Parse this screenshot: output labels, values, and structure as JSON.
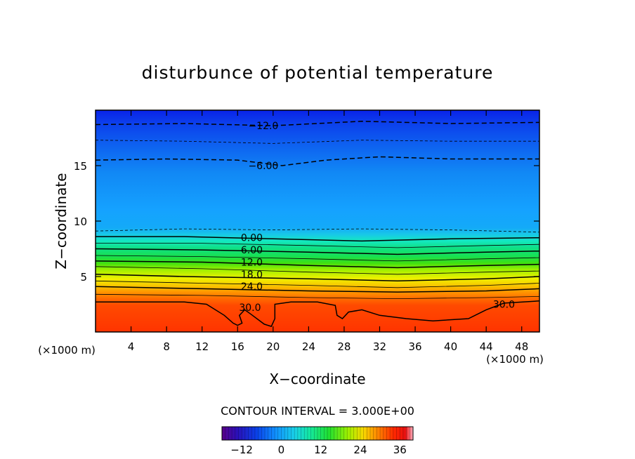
{
  "chart_data": {
    "type": "contour",
    "title": "disturbunce of potential temperature",
    "xlabel": "X−coordinate",
    "ylabel": "Z−coordinate",
    "x_unit_left": "(×1000 m)",
    "x_unit_right": "(×1000 m)",
    "xlim": [
      0,
      50
    ],
    "ylim": [
      0,
      20
    ],
    "x_ticks": [
      4,
      8,
      12,
      16,
      20,
      24,
      28,
      32,
      36,
      40,
      44,
      48
    ],
    "y_ticks": [
      5,
      10,
      15
    ],
    "contour_interval_text": "CONTOUR INTERVAL = 3.000E+00",
    "contour_labels": [
      {
        "text": "−12.0",
        "x": 18.9,
        "y": 18.6
      },
      {
        "text": "−6.00",
        "x": 18.9,
        "y": 15.0
      },
      {
        "text": "0.00",
        "x": 17.6,
        "y": 8.5
      },
      {
        "text": "6.00",
        "x": 17.6,
        "y": 7.4
      },
      {
        "text": "12.0",
        "x": 17.6,
        "y": 6.3
      },
      {
        "text": "18.0",
        "x": 17.6,
        "y": 5.2
      },
      {
        "text": "24.0",
        "x": 17.6,
        "y": 4.1
      },
      {
        "text": "30.0",
        "x": 17.4,
        "y": 2.2
      },
      {
        "text": "30.0",
        "x": 46.0,
        "y": 2.5
      }
    ],
    "colorbar": {
      "range": [
        -18,
        40
      ],
      "ticks": [
        -12,
        0,
        12,
        24,
        36
      ],
      "tick_labels": [
        "−12",
        "0",
        "12",
        "24",
        "36"
      ]
    },
    "line_contours": [
      {
        "level": -12,
        "style": "dashed",
        "points": [
          [
            0,
            18.7
          ],
          [
            10,
            18.8
          ],
          [
            20,
            18.6
          ],
          [
            30,
            19.0
          ],
          [
            40,
            18.8
          ],
          [
            50,
            18.9
          ]
        ]
      },
      {
        "level": -9,
        "style": "dashed-thin",
        "points": [
          [
            0,
            17.3
          ],
          [
            10,
            17.2
          ],
          [
            20,
            17.0
          ],
          [
            30,
            17.3
          ],
          [
            40,
            17.2
          ],
          [
            50,
            17.2
          ]
        ]
      },
      {
        "level": -6,
        "style": "dashed",
        "points": [
          [
            0,
            15.5
          ],
          [
            8,
            15.6
          ],
          [
            16,
            15.5
          ],
          [
            21,
            15.0
          ],
          [
            26,
            15.5
          ],
          [
            32,
            15.8
          ],
          [
            40,
            15.6
          ],
          [
            50,
            15.6
          ]
        ]
      },
      {
        "level": -3,
        "style": "dashed-thin",
        "points": [
          [
            0,
            9.1
          ],
          [
            10,
            9.3
          ],
          [
            20,
            9.2
          ],
          [
            30,
            9.3
          ],
          [
            40,
            9.2
          ],
          [
            50,
            9.0
          ]
        ]
      },
      {
        "level": 0,
        "style": "solid",
        "points": [
          [
            0,
            8.6
          ],
          [
            10,
            8.6
          ],
          [
            20,
            8.4
          ],
          [
            30,
            8.2
          ],
          [
            40,
            8.4
          ],
          [
            50,
            8.5
          ]
        ]
      },
      {
        "level": 3,
        "style": "solid-thin",
        "points": [
          [
            0,
            8.0
          ],
          [
            12,
            8.0
          ],
          [
            24,
            7.8
          ],
          [
            34,
            7.6
          ],
          [
            44,
            7.8
          ],
          [
            50,
            7.9
          ]
        ]
      },
      {
        "level": 6,
        "style": "solid",
        "points": [
          [
            0,
            7.5
          ],
          [
            12,
            7.4
          ],
          [
            24,
            7.2
          ],
          [
            34,
            7.0
          ],
          [
            44,
            7.2
          ],
          [
            50,
            7.3
          ]
        ]
      },
      {
        "level": 9,
        "style": "solid-thin",
        "points": [
          [
            0,
            6.9
          ],
          [
            12,
            6.8
          ],
          [
            24,
            6.6
          ],
          [
            34,
            6.4
          ],
          [
            44,
            6.6
          ],
          [
            50,
            6.7
          ]
        ]
      },
      {
        "level": 12,
        "style": "solid",
        "points": [
          [
            0,
            6.4
          ],
          [
            12,
            6.3
          ],
          [
            24,
            6.0
          ],
          [
            34,
            5.8
          ],
          [
            44,
            6.0
          ],
          [
            50,
            6.1
          ]
        ]
      },
      {
        "level": 15,
        "style": "solid-thin",
        "points": [
          [
            0,
            5.9
          ],
          [
            12,
            5.7
          ],
          [
            24,
            5.4
          ],
          [
            34,
            5.2
          ],
          [
            44,
            5.4
          ],
          [
            50,
            5.5
          ]
        ]
      },
      {
        "level": 18,
        "style": "solid",
        "points": [
          [
            0,
            5.2
          ],
          [
            10,
            5.0
          ],
          [
            24,
            4.8
          ],
          [
            34,
            4.6
          ],
          [
            44,
            4.8
          ],
          [
            50,
            5.0
          ]
        ]
      },
      {
        "level": 21,
        "style": "solid-thin",
        "points": [
          [
            0,
            4.6
          ],
          [
            12,
            4.4
          ],
          [
            24,
            4.2
          ],
          [
            34,
            4.0
          ],
          [
            44,
            4.2
          ],
          [
            50,
            4.4
          ]
        ]
      },
      {
        "level": 24,
        "style": "solid",
        "points": [
          [
            0,
            4.1
          ],
          [
            12,
            3.9
          ],
          [
            24,
            3.7
          ],
          [
            34,
            3.6
          ],
          [
            44,
            3.7
          ],
          [
            50,
            3.9
          ]
        ]
      },
      {
        "level": 27,
        "style": "solid-thin",
        "points": [
          [
            0,
            3.4
          ],
          [
            12,
            3.3
          ],
          [
            24,
            3.1
          ],
          [
            34,
            3.0
          ],
          [
            44,
            3.1
          ],
          [
            50,
            3.2
          ]
        ]
      },
      {
        "level": 30,
        "style": "solid",
        "points": [
          [
            0,
            2.7
          ],
          [
            10,
            2.7
          ],
          [
            12.5,
            2.5
          ],
          [
            14.5,
            1.5
          ],
          [
            15.5,
            0.8
          ],
          [
            16,
            0.6
          ],
          [
            16.5,
            0.8
          ],
          [
            16.2,
            1.5
          ],
          [
            16.8,
            2.0
          ],
          [
            17.5,
            1.6
          ],
          [
            19,
            0.7
          ],
          [
            19.8,
            0.5
          ],
          [
            20.2,
            1.2
          ],
          [
            20.2,
            2.5
          ],
          [
            22,
            2.7
          ],
          [
            25,
            2.7
          ],
          [
            27,
            2.4
          ],
          [
            27.2,
            1.5
          ],
          [
            27.8,
            1.2
          ],
          [
            28.5,
            1.8
          ],
          [
            30,
            2.0
          ],
          [
            32,
            1.5
          ],
          [
            35,
            1.2
          ],
          [
            38,
            1.0
          ],
          [
            42,
            1.2
          ],
          [
            44,
            2.0
          ],
          [
            46,
            2.6
          ],
          [
            50,
            2.8
          ]
        ]
      }
    ]
  },
  "colors": {
    "colormap": [
      "#3a007a",
      "#1a10b0",
      "#0a30e0",
      "#0c6df0",
      "#14a0ff",
      "#18c8e8",
      "#14e8b0",
      "#10e070",
      "#30e020",
      "#90f000",
      "#e0f000",
      "#f8c000",
      "#ff7a00",
      "#ff3a00",
      "#e81000",
      "#ffa0b0"
    ]
  }
}
